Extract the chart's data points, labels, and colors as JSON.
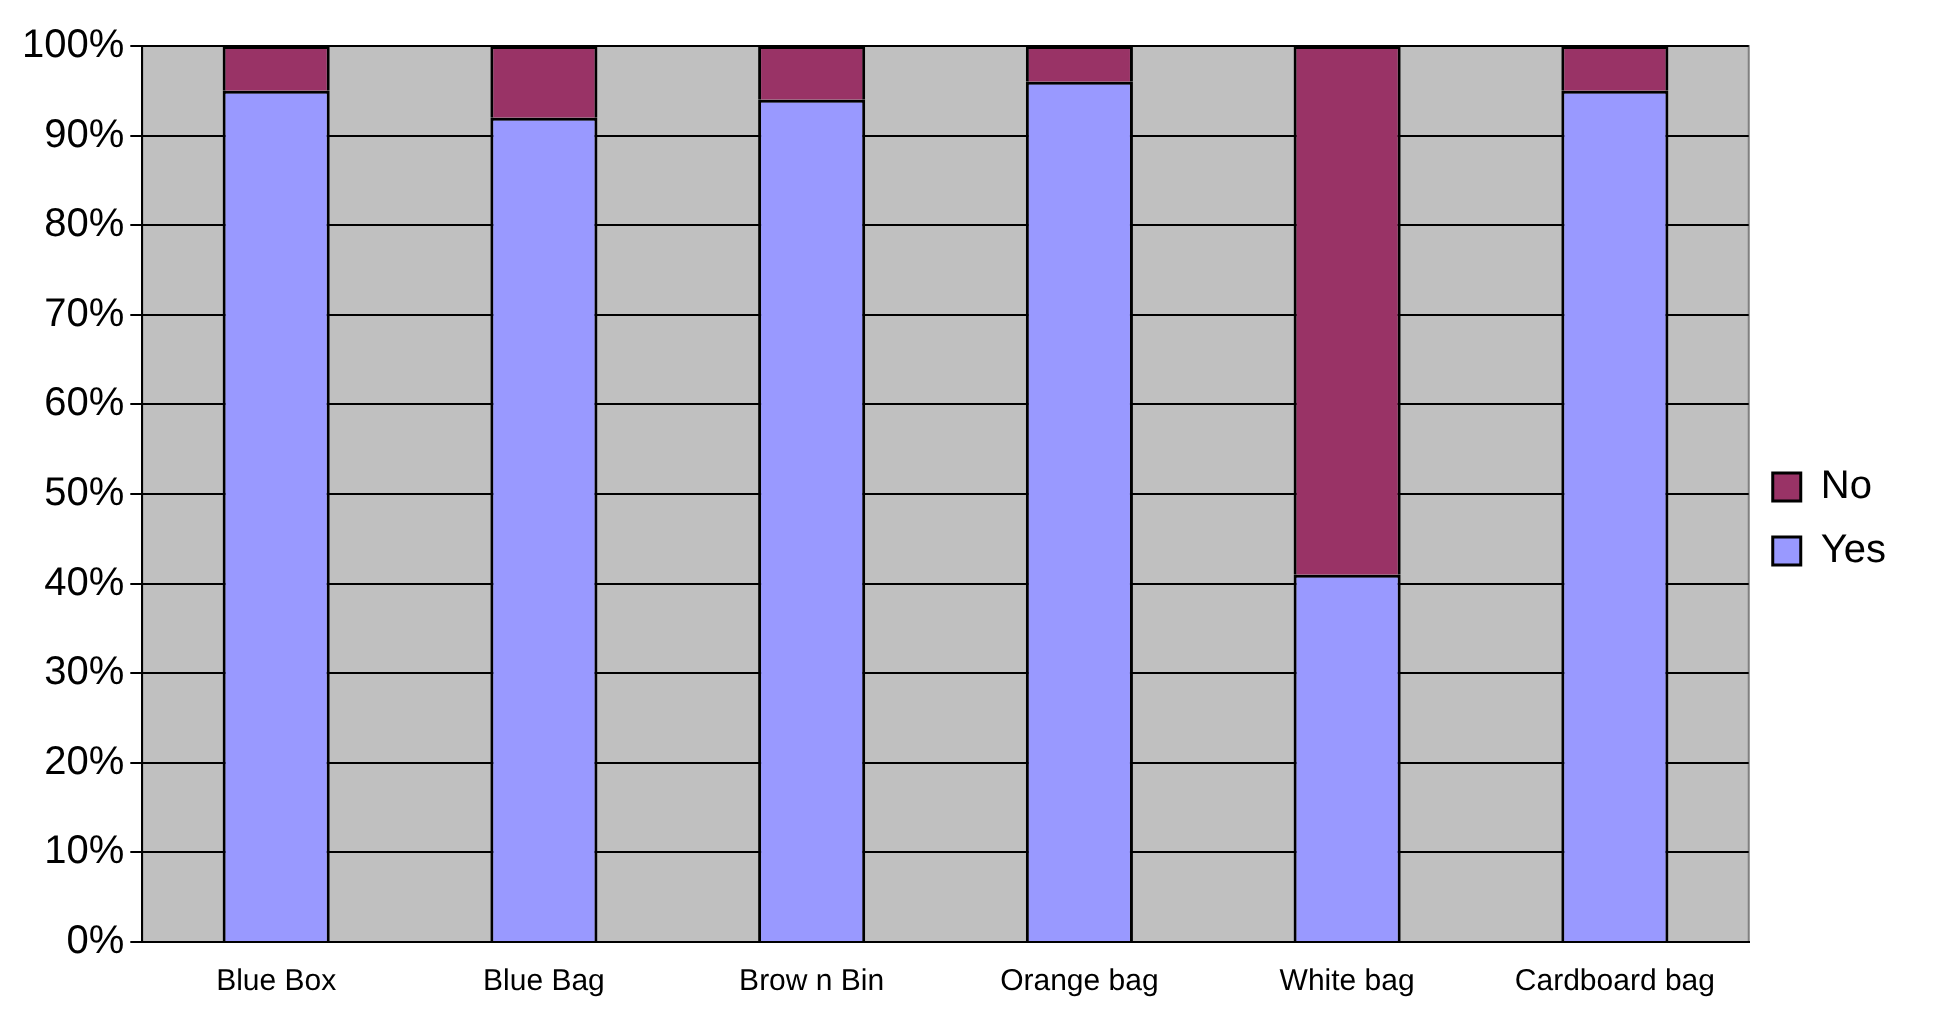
{
  "chart_data": {
    "type": "bar",
    "stacked": true,
    "categories": [
      "Blue Box",
      "Blue Bag",
      "Brow n Bin",
      "Orange bag",
      "White bag",
      "Cardboard bag"
    ],
    "series": [
      {
        "name": "Yes",
        "color": "#9999ff",
        "values": [
          95,
          92,
          94,
          96,
          41,
          95
        ]
      },
      {
        "name": "No",
        "color": "#993366",
        "values": [
          5,
          8,
          6,
          4,
          59,
          5
        ]
      }
    ],
    "ylim": [
      0,
      100
    ],
    "yticks": [
      {
        "value": 0,
        "label": "0%"
      },
      {
        "value": 10,
        "label": "10%"
      },
      {
        "value": 20,
        "label": "20%"
      },
      {
        "value": 30,
        "label": "30%"
      },
      {
        "value": 40,
        "label": "40%"
      },
      {
        "value": 50,
        "label": "50%"
      },
      {
        "value": 60,
        "label": "60%"
      },
      {
        "value": 70,
        "label": "70%"
      },
      {
        "value": 80,
        "label": "80%"
      },
      {
        "value": 90,
        "label": "90%"
      },
      {
        "value": 100,
        "label": "100%"
      }
    ],
    "grid": "y",
    "legend": "right"
  }
}
